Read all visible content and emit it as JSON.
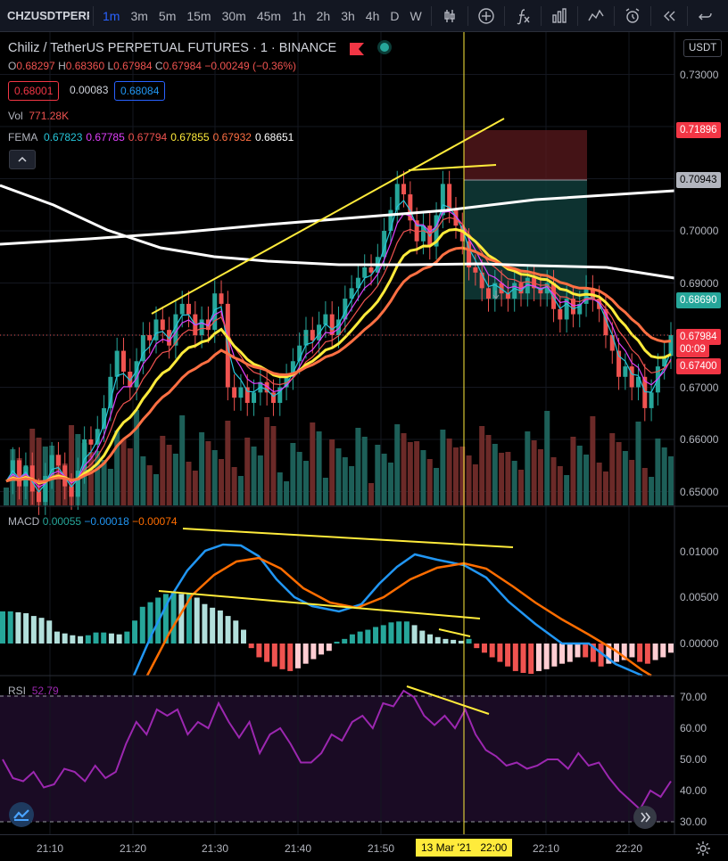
{
  "toolbar": {
    "symbol": "CHZUSDTPERP",
    "timeframes": [
      "1m",
      "3m",
      "5m",
      "15m",
      "30m",
      "45m",
      "1h",
      "2h",
      "3h",
      "4h",
      "D",
      "W"
    ],
    "active_timeframe": "1m",
    "icons": [
      "chevron-down-icon",
      "candles-icon",
      "add-indicator-icon",
      "fx-icon",
      "bar-style-icon",
      "compare-icon",
      "alert-icon",
      "replay-icon",
      "undo-icon"
    ]
  },
  "header": {
    "title": "Chiliz / TetherUS PERPETUAL FUTURES · 1 · BINANCE",
    "ohlc": {
      "o_label": "O",
      "o": "0.68297",
      "h_label": "H",
      "h": "0.68360",
      "l_label": "L",
      "l": "0.67984",
      "c_label": "C",
      "c": "0.67984",
      "change": "−0.00249 (−0.36%)"
    },
    "bid": "0.68001",
    "spread": "0.00083",
    "ask": "0.68084",
    "vol_label": "Vol",
    "vol": "771.28K",
    "fema_label": "FEMA",
    "fema_values": [
      "0.67823",
      "0.67785",
      "0.67794",
      "0.67855",
      "0.67932",
      "0.68651"
    ],
    "fema_colors": [
      "#26c6da",
      "#e040fb",
      "#ef5350",
      "#ffeb3b",
      "#ff7043",
      "#ffffff"
    ],
    "currency_button": "USDT",
    "collapse_icon": "chevron-up-icon"
  },
  "price_axis": {
    "labels": [
      "0.73000",
      "0.72000",
      "0.71000",
      "0.70000",
      "0.69000",
      "0.68000",
      "0.67000",
      "0.66000",
      "0.65000"
    ],
    "badges": [
      {
        "text": "0.71896",
        "bg": "#f23645",
        "fg": "#ffffff"
      },
      {
        "text": "0.70943",
        "bg": "#b2b5be",
        "fg": "#000000"
      },
      {
        "text": "0.68690",
        "bg": "#26a69a",
        "fg": "#ffffff"
      },
      {
        "text": "0.67984",
        "bg": "#f23645",
        "fg": "#ffffff"
      },
      {
        "text": "00:09",
        "bg": "#f23645",
        "fg": "#ffffff"
      },
      {
        "text": "0.67400",
        "bg": "#f23645",
        "fg": "#ffffff"
      }
    ]
  },
  "macd": {
    "label": "MACD",
    "values": [
      "0.00055",
      "−0.00018",
      "−0.00074"
    ],
    "colors": [
      "#2196f3",
      "#2196f3",
      "#ff6d00"
    ],
    "axis": [
      "0.01000",
      "0.00500",
      "0.00000"
    ]
  },
  "rsi": {
    "label": "RSI",
    "value": "52.79",
    "axis": [
      "70.00",
      "60.00",
      "50.00",
      "40.00",
      "30.00"
    ]
  },
  "time_axis": {
    "labels": [
      "21:10",
      "21:20",
      "21:30",
      "21:40",
      "21:50",
      "22:10",
      "22:20"
    ],
    "crosshair_label": "13 Mar '21   22:00",
    "settings_icon": "gear-icon"
  },
  "colors": {
    "up": "#26a69a",
    "down": "#ef5350",
    "trend": "#ffeb3b",
    "crosshair": "#ffeb3b"
  }
}
